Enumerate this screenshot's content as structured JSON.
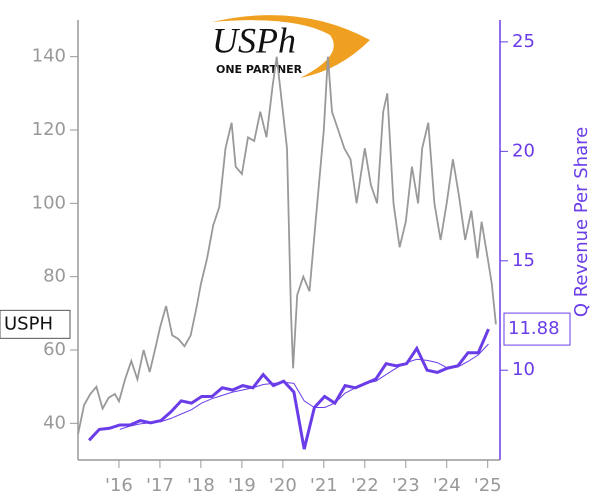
{
  "chart_data": {
    "type": "line",
    "logo": {
      "brand": "USPh",
      "tagline": "ONE PARTNER"
    },
    "y2_label": "Q Revenue Per Share",
    "xlim": [
      2015.0,
      2025.3
    ],
    "xticks": [
      {
        "value": 2016,
        "label": "'16"
      },
      {
        "value": 2017,
        "label": "'17"
      },
      {
        "value": 2018,
        "label": "'18"
      },
      {
        "value": 2019,
        "label": "'19"
      },
      {
        "value": 2020,
        "label": "'20"
      },
      {
        "value": 2021,
        "label": "'21"
      },
      {
        "value": 2022,
        "label": "'22"
      },
      {
        "value": 2023,
        "label": "'23"
      },
      {
        "value": 2024,
        "label": "'24"
      },
      {
        "value": 2025,
        "label": "'25"
      }
    ],
    "ylim": [
      30,
      150
    ],
    "yticks": [
      40,
      60,
      80,
      100,
      120,
      140
    ],
    "y2lim": [
      5.9,
      26
    ],
    "y2ticks": [
      10,
      15,
      20,
      25
    ],
    "series": [
      {
        "name": "USPH",
        "color": "#999999",
        "value_labels": null,
        "x": [
          2015.0,
          2015.15,
          2015.3,
          2015.45,
          2015.6,
          2015.75,
          2015.9,
          2016.0,
          2016.15,
          2016.3,
          2016.45,
          2016.6,
          2016.75,
          2016.9,
          2017.0,
          2017.15,
          2017.3,
          2017.45,
          2017.6,
          2017.75,
          2017.9,
          2018.0,
          2018.15,
          2018.3,
          2018.45,
          2018.6,
          2018.75,
          2018.85,
          2019.0,
          2019.15,
          2019.3,
          2019.45,
          2019.6,
          2019.75,
          2019.85,
          2020.0,
          2020.1,
          2020.2,
          2020.25,
          2020.35,
          2020.5,
          2020.65,
          2020.8,
          2021.0,
          2021.1,
          2021.2,
          2021.35,
          2021.5,
          2021.65,
          2021.8,
          2022.0,
          2022.15,
          2022.3,
          2022.45,
          2022.55,
          2022.7,
          2022.85,
          2023.0,
          2023.15,
          2023.3,
          2023.4,
          2023.55,
          2023.7,
          2023.85,
          2024.0,
          2024.15,
          2024.3,
          2024.45,
          2024.6,
          2024.75,
          2024.85,
          2025.0,
          2025.1,
          2025.2
        ],
        "values": [
          37,
          45,
          48,
          50,
          44,
          47,
          48,
          46,
          52,
          57,
          52,
          60,
          54,
          61,
          66,
          72,
          64,
          63,
          61,
          64,
          72,
          78,
          85,
          94,
          99,
          115,
          122,
          110,
          108,
          118,
          117,
          125,
          118,
          132,
          140,
          125,
          115,
          70,
          55,
          75,
          80,
          76,
          95,
          120,
          140,
          125,
          120,
          115,
          112,
          100,
          115,
          105,
          100,
          125,
          130,
          100,
          88,
          95,
          110,
          100,
          115,
          122,
          100,
          90,
          100,
          112,
          102,
          90,
          98,
          85,
          95,
          85,
          78,
          67
        ]
      },
      {
        "name": "Q Revenue Per Share",
        "color": "#6a3de8",
        "axis": "y2",
        "x": [
          2015.27,
          2015.52,
          2015.77,
          2016.02,
          2016.27,
          2016.52,
          2016.77,
          2017.02,
          2017.27,
          2017.52,
          2017.77,
          2018.02,
          2018.27,
          2018.52,
          2018.77,
          2019.02,
          2019.27,
          2019.52,
          2019.77,
          2020.02,
          2020.27,
          2020.52,
          2020.77,
          2021.02,
          2021.27,
          2021.52,
          2021.77,
          2022.02,
          2022.27,
          2022.52,
          2022.77,
          2023.02,
          2023.27,
          2023.52,
          2023.77,
          2024.02,
          2024.27,
          2024.52,
          2024.77,
          2025.02
        ],
        "values": [
          6.8,
          7.3,
          7.35,
          7.5,
          7.5,
          7.7,
          7.6,
          7.7,
          8.1,
          8.6,
          8.5,
          8.8,
          8.8,
          9.2,
          9.1,
          9.3,
          9.2,
          9.8,
          9.3,
          9.5,
          9.0,
          6.4,
          8.3,
          8.8,
          8.5,
          9.3,
          9.2,
          9.4,
          9.6,
          10.3,
          10.2,
          10.3,
          11.0,
          10.0,
          9.9,
          10.1,
          10.2,
          10.8,
          10.8,
          11.88
        ],
        "value_labels": "11.88"
      },
      {
        "color": "#6a3de8",
        "axis": "y2",
        "thin": true,
        "x": [
          2016.02,
          2016.27,
          2016.52,
          2016.77,
          2017.02,
          2017.27,
          2017.52,
          2017.77,
          2018.02,
          2018.27,
          2018.52,
          2018.77,
          2019.02,
          2019.27,
          2019.52,
          2019.77,
          2020.02,
          2020.27,
          2020.52,
          2020.77,
          2021.02,
          2021.27,
          2021.52,
          2021.77,
          2022.02,
          2022.27,
          2022.52,
          2022.77,
          2023.02,
          2023.27,
          2023.52,
          2023.77,
          2024.02,
          2024.27,
          2024.52,
          2024.77,
          2025.02
        ],
        "values": [
          7.3,
          7.45,
          7.55,
          7.6,
          7.65,
          7.8,
          8.0,
          8.2,
          8.5,
          8.7,
          8.85,
          9.0,
          9.1,
          9.2,
          9.35,
          9.4,
          9.45,
          9.4,
          8.6,
          8.3,
          8.3,
          8.5,
          8.95,
          9.2,
          9.4,
          9.5,
          9.8,
          10.1,
          10.35,
          10.5,
          10.45,
          10.35,
          10.1,
          10.15,
          10.4,
          10.7,
          11.2
        ]
      }
    ]
  }
}
